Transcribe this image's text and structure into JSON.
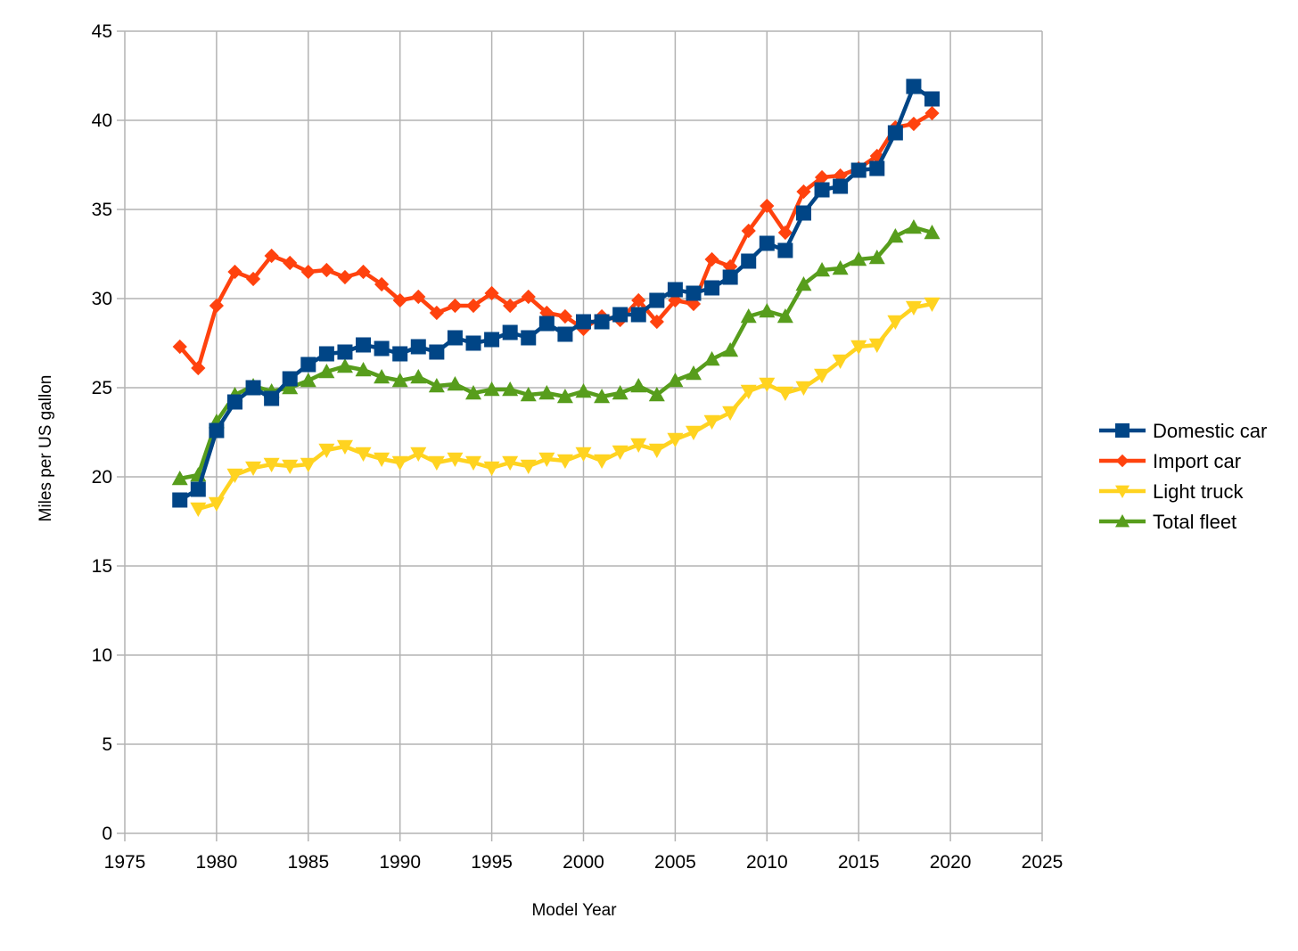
{
  "chart_data": {
    "type": "line",
    "title": "",
    "xlabel": "Model Year",
    "ylabel": "Miles per US gallon",
    "xlim": [
      1975,
      2025
    ],
    "ylim": [
      0,
      45
    ],
    "x_ticks": [
      1975,
      1980,
      1985,
      1990,
      1995,
      2000,
      2005,
      2010,
      2015,
      2020,
      2025
    ],
    "y_ticks": [
      0,
      5,
      10,
      15,
      20,
      25,
      30,
      35,
      40,
      45
    ],
    "grid": true,
    "legend_position": "right",
    "series": [
      {
        "name": "Domestic car",
        "color": "#004586",
        "marker": "square",
        "x": [
          1978,
          1979,
          1980,
          1981,
          1982,
          1983,
          1984,
          1985,
          1986,
          1987,
          1988,
          1989,
          1990,
          1991,
          1992,
          1993,
          1994,
          1995,
          1996,
          1997,
          1998,
          1999,
          2000,
          2001,
          2002,
          2003,
          2004,
          2005,
          2006,
          2007,
          2008,
          2009,
          2010,
          2011,
          2012,
          2013,
          2014,
          2015,
          2016,
          2017,
          2018,
          2019
        ],
        "y": [
          18.7,
          19.3,
          22.6,
          24.2,
          25.0,
          24.4,
          25.5,
          26.3,
          26.9,
          27.0,
          27.4,
          27.2,
          26.9,
          27.3,
          27.0,
          27.8,
          27.5,
          27.7,
          28.1,
          27.8,
          28.6,
          28.0,
          28.7,
          28.7,
          29.1,
          29.1,
          29.9,
          30.5,
          30.3,
          30.6,
          31.2,
          32.1,
          33.1,
          32.7,
          34.8,
          36.1,
          36.3,
          37.2,
          37.3,
          39.3,
          41.9,
          41.2
        ]
      },
      {
        "name": "Import car",
        "color": "#ff420e",
        "marker": "diamond",
        "x": [
          1978,
          1979,
          1980,
          1981,
          1982,
          1983,
          1984,
          1985,
          1986,
          1987,
          1988,
          1989,
          1990,
          1991,
          1992,
          1993,
          1994,
          1995,
          1996,
          1997,
          1998,
          1999,
          2000,
          2001,
          2002,
          2003,
          2004,
          2005,
          2006,
          2007,
          2008,
          2009,
          2010,
          2011,
          2012,
          2013,
          2014,
          2015,
          2016,
          2017,
          2018,
          2019
        ],
        "y": [
          27.3,
          26.1,
          29.6,
          31.5,
          31.1,
          32.4,
          32.0,
          31.5,
          31.6,
          31.2,
          31.5,
          30.8,
          29.9,
          30.1,
          29.2,
          29.6,
          29.6,
          30.3,
          29.6,
          30.1,
          29.2,
          29.0,
          28.3,
          29.0,
          28.8,
          29.9,
          28.7,
          29.9,
          29.7,
          32.2,
          31.8,
          33.8,
          35.2,
          33.7,
          36.0,
          36.8,
          36.9,
          37.3,
          38.0,
          39.6,
          39.8,
          40.4
        ]
      },
      {
        "name": "Light truck",
        "color": "#ffd320",
        "marker": "triangle-down",
        "x": [
          1979,
          1980,
          1981,
          1982,
          1983,
          1984,
          1985,
          1986,
          1987,
          1988,
          1989,
          1990,
          1991,
          1992,
          1993,
          1994,
          1995,
          1996,
          1997,
          1998,
          1999,
          2000,
          2001,
          2002,
          2003,
          2004,
          2005,
          2006,
          2007,
          2008,
          2009,
          2010,
          2011,
          2012,
          2013,
          2014,
          2015,
          2016,
          2017,
          2018,
          2019
        ],
        "y": [
          18.2,
          18.5,
          20.1,
          20.5,
          20.7,
          20.6,
          20.7,
          21.5,
          21.7,
          21.3,
          21.0,
          20.8,
          21.3,
          20.8,
          21.0,
          20.8,
          20.5,
          20.8,
          20.6,
          21.0,
          20.9,
          21.3,
          20.9,
          21.4,
          21.8,
          21.5,
          22.1,
          22.5,
          23.1,
          23.6,
          24.8,
          25.2,
          24.7,
          25.0,
          25.7,
          26.5,
          27.3,
          27.4,
          28.7,
          29.5,
          29.7
        ]
      },
      {
        "name": "Total fleet",
        "color": "#579d1c",
        "marker": "triangle-up",
        "x": [
          1978,
          1979,
          1980,
          1981,
          1982,
          1983,
          1984,
          1985,
          1986,
          1987,
          1988,
          1989,
          1990,
          1991,
          1992,
          1993,
          1994,
          1995,
          1996,
          1997,
          1998,
          1999,
          2000,
          2001,
          2002,
          2003,
          2004,
          2005,
          2006,
          2007,
          2008,
          2009,
          2010,
          2011,
          2012,
          2013,
          2014,
          2015,
          2016,
          2017,
          2018,
          2019
        ],
        "y": [
          19.9,
          20.1,
          23.1,
          24.6,
          25.1,
          24.8,
          25.0,
          25.4,
          25.9,
          26.2,
          26.0,
          25.6,
          25.4,
          25.6,
          25.1,
          25.2,
          24.7,
          24.9,
          24.9,
          24.6,
          24.7,
          24.5,
          24.8,
          24.5,
          24.7,
          25.1,
          24.6,
          25.4,
          25.8,
          26.6,
          27.1,
          29.0,
          29.3,
          29.0,
          30.8,
          31.6,
          31.7,
          32.2,
          32.3,
          33.5,
          34.0,
          33.7
        ]
      }
    ]
  }
}
